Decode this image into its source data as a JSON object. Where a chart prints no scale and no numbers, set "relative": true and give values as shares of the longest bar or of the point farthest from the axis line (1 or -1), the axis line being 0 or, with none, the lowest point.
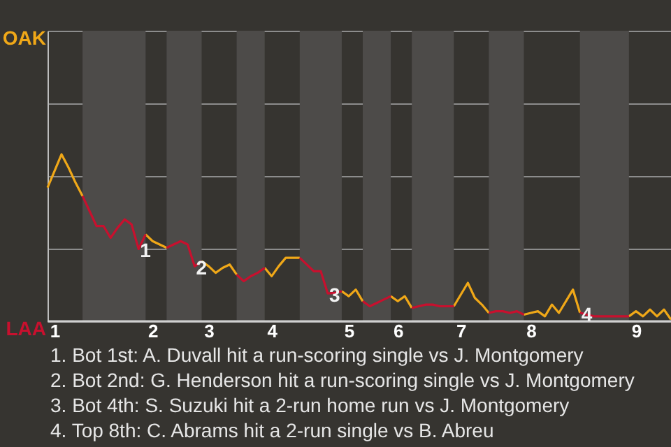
{
  "chart_data": {
    "type": "line",
    "relative": true,
    "ylim": [
      0,
      1.74
    ],
    "categories": [
      null,
      "1",
      null,
      null,
      null,
      null,
      null,
      null,
      null,
      null,
      null,
      null,
      null,
      null,
      null,
      "2",
      null,
      null,
      null,
      null,
      null,
      null,
      null,
      "3",
      null,
      null,
      null,
      null,
      null,
      null,
      null,
      null,
      "4",
      null,
      null,
      null,
      null,
      null,
      null,
      null,
      null,
      null,
      null,
      "5",
      null,
      null,
      null,
      null,
      null,
      null,
      "6",
      null,
      null,
      null,
      null,
      null,
      null,
      null,
      null,
      "7",
      null,
      null,
      null,
      null,
      null,
      null,
      null,
      null,
      null,
      "8",
      null,
      null,
      null,
      null,
      null,
      null,
      null,
      null,
      null,
      null,
      null,
      null,
      null,
      null,
      "9",
      null,
      null,
      null,
      null,
      null
    ],
    "grid": "y",
    "series": [
      {
        "color": "#f0a818",
        "values": [
          0.8,
          0.9,
          1,
          0.92,
          0.83,
          0.75,
          null,
          null,
          null,
          null,
          null,
          null,
          null,
          null,
          0.52,
          0.48,
          0.46,
          0.44,
          null,
          null,
          null,
          null,
          0.36,
          0.33,
          0.29,
          0.32,
          0.34,
          0.28,
          null,
          null,
          null,
          0.32,
          0.27,
          0.33,
          0.38,
          0.38,
          0.38,
          null,
          null,
          null,
          null,
          null,
          0.18,
          0.15,
          0.19,
          0.12,
          null,
          null,
          null,
          0.15,
          0.12,
          0.15,
          0.08,
          null,
          null,
          null,
          null,
          null,
          0.09,
          0.16,
          0.23,
          0.14,
          0.1,
          0.05,
          null,
          null,
          null,
          null,
          0.04,
          0.05,
          0.06,
          0.03,
          0.1,
          0.05,
          0.12,
          0.19,
          0.051,
          null,
          null,
          null,
          null,
          null,
          null,
          0.03,
          0.06,
          0.03,
          0.07,
          0.03,
          0.07,
          0.01
        ],
        "marker": "none"
      },
      {
        "color": "#c8102e",
        "values": [
          null,
          null,
          null,
          null,
          null,
          0.75,
          0.66,
          0.57,
          0.57,
          0.5,
          0.56,
          0.61,
          0.58,
          0.433,
          0.52,
          null,
          null,
          0.44,
          0.46,
          0.48,
          0.46,
          0.329,
          0.36,
          null,
          null,
          null,
          null,
          0.28,
          0.24,
          0.27,
          0.29,
          0.32,
          null,
          null,
          null,
          null,
          0.38,
          0.34,
          0.3,
          0.3,
          0.167,
          0.17,
          0.18,
          null,
          null,
          0.12,
          0.09,
          0.11,
          0.13,
          0.15,
          null,
          null,
          0.08,
          0.09,
          0.1,
          0.1,
          0.09,
          0.09,
          0.09,
          null,
          null,
          null,
          null,
          0.05,
          0.06,
          0.06,
          0.05,
          0.06,
          0.04,
          null,
          null,
          null,
          null,
          null,
          null,
          null,
          0.051,
          0.04,
          0.03,
          0.03,
          0.03,
          0.03,
          0.03,
          0.03,
          null,
          null,
          null,
          null,
          null,
          null
        ]
      }
    ],
    "annotations": [
      {
        "text": "1",
        "y": 0.433
      },
      {
        "text": "2",
        "y": 0.329
      },
      {
        "text": "3",
        "y": 0.167
      },
      {
        "text": "4",
        "y": 0.051
      },
      "OAK",
      "LAA",
      "1. Bot 1st: A. Duvall hit a run-scoring single vs J. Montgomery",
      "2. Bot 2nd: G. Henderson hit a run-scoring single vs J. Montgomery",
      "3. Bot 4th: S. Suzuki hit a 2-run home run vs J. Montgomery",
      "4. Top 8th: C. Abrams hit a 2-run single vs B. Abreu"
    ]
  }
}
